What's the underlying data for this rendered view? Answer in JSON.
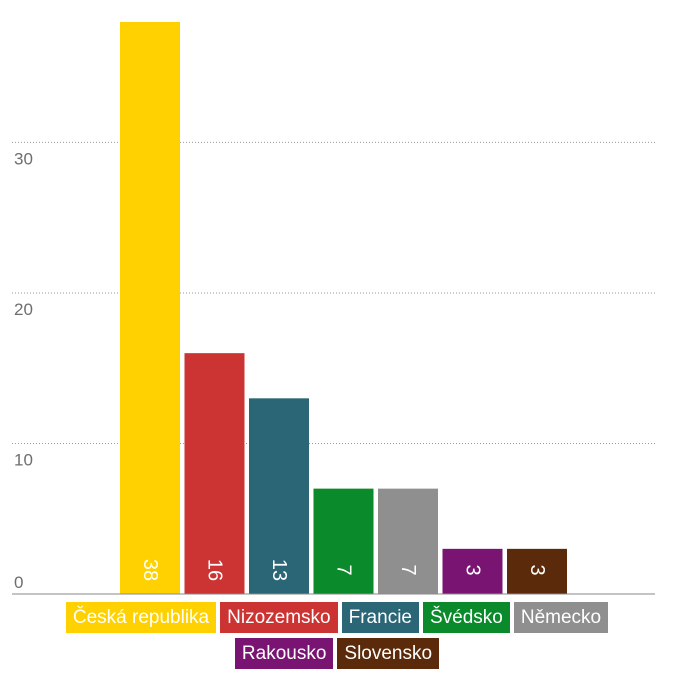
{
  "chart_data": {
    "type": "bar",
    "categories": [
      "Česká republika",
      "Nizozemsko",
      "Francie",
      "Švédsko",
      "Německo",
      "Rakousko",
      "Slovensko"
    ],
    "values": [
      38,
      16,
      13,
      7,
      7,
      3,
      3
    ],
    "colors": [
      "#ffd100",
      "#cc3333",
      "#2a6676",
      "#0a8a2a",
      "#8f8f8f",
      "#7a1473",
      "#5a2a0a"
    ],
    "ylim": [
      0,
      38
    ],
    "yticks": [
      0,
      10,
      20,
      30
    ],
    "grid": true,
    "grid_style": "dotted",
    "legend_position": "bottom",
    "data_labels": "inside-bottom-rotated"
  }
}
